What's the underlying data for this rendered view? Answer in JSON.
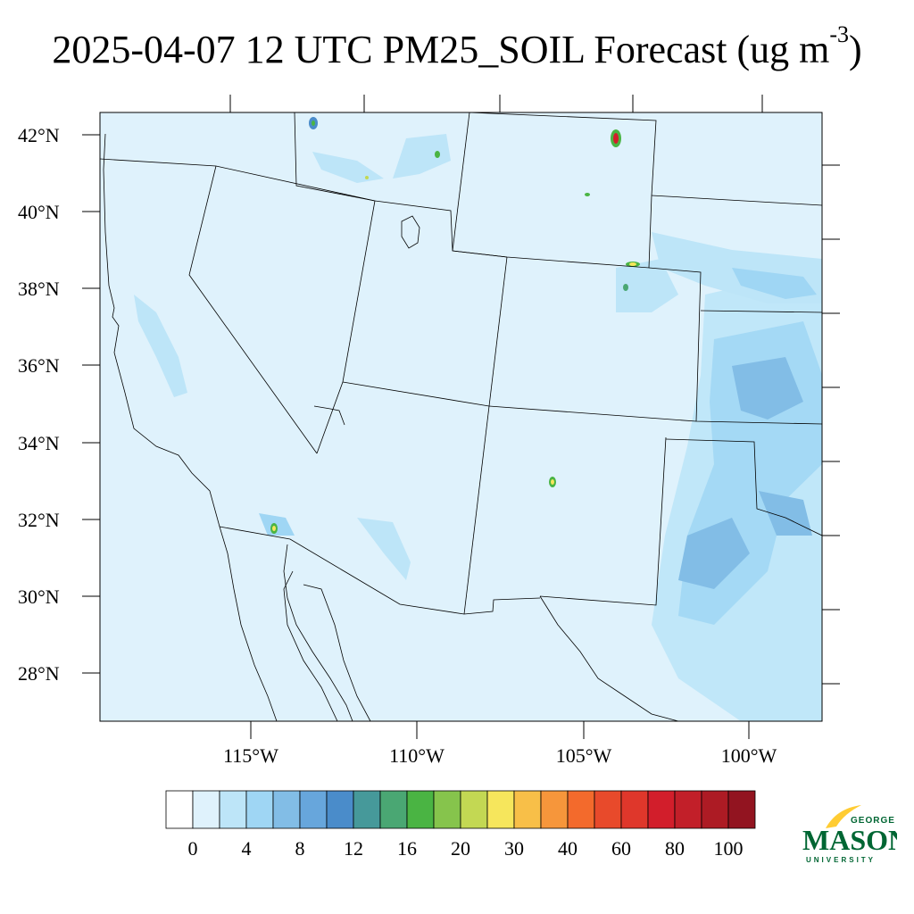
{
  "title": {
    "main": "2025-04-07 12 UTC PM25_SOIL Forecast (ug m",
    "superscript": "-3",
    "close": ")"
  },
  "map": {
    "lat_labels": [
      "42°N",
      "40°N",
      "38°N",
      "36°N",
      "34°N",
      "32°N",
      "30°N",
      "28°N"
    ],
    "lon_labels": [
      "115°W",
      "110°W",
      "105°W",
      "100°W"
    ],
    "background_color": "#dff2fc",
    "boundary_color": "#000000"
  },
  "colorbar": {
    "colors": [
      "#ffffff",
      "#dff2fc",
      "#bde5f8",
      "#9fd6f4",
      "#82bde6",
      "#67a6dc",
      "#4a8cca",
      "#46999a",
      "#4aa773",
      "#4ab443",
      "#86c44c",
      "#c3d853",
      "#f6e65c",
      "#f8bf48",
      "#f6963b",
      "#f36a2c",
      "#e84a2b",
      "#df372b",
      "#d21e2b",
      "#c21f29",
      "#ad1b24",
      "#921420"
    ],
    "labels": [
      "0",
      "4",
      "8",
      "12",
      "16",
      "20",
      "30",
      "40",
      "60",
      "80",
      "100"
    ]
  },
  "logo": {
    "line1": "GEORGE",
    "line2": "MASON",
    "line3": "UNIVERSITY",
    "green": "#006633",
    "gold": "#ffcc33"
  }
}
